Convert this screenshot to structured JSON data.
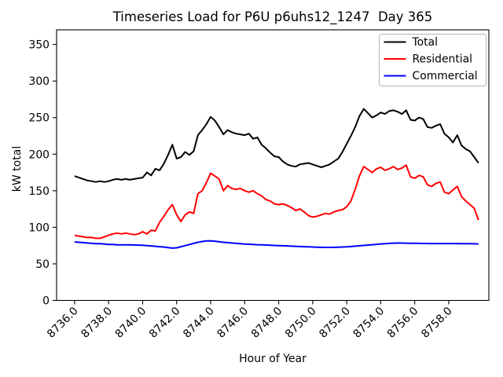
{
  "figure": {
    "title": "Timeseries Load for P6U p6uhs12_1247  Day 365",
    "xlabel": "Hour of Year",
    "ylabel": "kW total",
    "background_color": "#ffffff"
  },
  "legend": {
    "position": "upper right",
    "entries": [
      {
        "label": "Total",
        "color": "#000000"
      },
      {
        "label": "Residential",
        "color": "#ff0000"
      },
      {
        "label": "Commercial",
        "color": "#0000ff"
      }
    ]
  },
  "chart_data": {
    "type": "line",
    "title": "Timeseries Load for P6U p6uhs12_1247  Day 365",
    "xlabel": "Hour of Year",
    "ylabel": "kW total",
    "xlim": [
      8734.94,
      8760.36
    ],
    "ylim": [
      0,
      370
    ],
    "xticks": [
      8736.0,
      8738.0,
      8740.0,
      8742.0,
      8744.0,
      8746.0,
      8748.0,
      8750.0,
      8752.0,
      8754.0,
      8756.0,
      8758.0
    ],
    "yticks": [
      0,
      50,
      100,
      150,
      200,
      250,
      300,
      350
    ],
    "xtick_decimals": 1,
    "grid": false,
    "legend_position": "upper right",
    "x": [
      8736.0,
      8736.25,
      8736.5,
      8736.75,
      8737.0,
      8737.25,
      8737.5,
      8737.75,
      8738.0,
      8738.25,
      8738.5,
      8738.75,
      8739.0,
      8739.25,
      8739.5,
      8739.75,
      8740.0,
      8740.25,
      8740.5,
      8740.75,
      8741.0,
      8741.25,
      8741.5,
      8741.75,
      8742.0,
      8742.25,
      8742.5,
      8742.75,
      8743.0,
      8743.25,
      8743.5,
      8743.75,
      8744.0,
      8744.25,
      8744.5,
      8744.75,
      8745.0,
      8745.25,
      8745.5,
      8745.75,
      8746.0,
      8746.25,
      8746.5,
      8746.75,
      8747.0,
      8747.25,
      8747.5,
      8747.75,
      8748.0,
      8748.25,
      8748.5,
      8748.75,
      8749.0,
      8749.25,
      8749.5,
      8749.75,
      8750.0,
      8750.25,
      8750.5,
      8750.75,
      8751.0,
      8751.25,
      8751.5,
      8751.75,
      8752.0,
      8752.25,
      8752.5,
      8752.75,
      8753.0,
      8753.25,
      8753.5,
      8753.75,
      8754.0,
      8754.25,
      8754.5,
      8754.75,
      8755.0,
      8755.25,
      8755.5,
      8755.75,
      8756.0,
      8756.25,
      8756.5,
      8756.75,
      8757.0,
      8757.25,
      8757.5,
      8757.75,
      8758.0,
      8758.25,
      8758.5,
      8758.75,
      8759.0,
      8759.25,
      8759.5,
      8759.75
    ],
    "series": [
      {
        "name": "Total",
        "color": "#000000",
        "values": [
          170,
          168,
          166,
          164,
          163,
          162,
          163,
          162,
          163,
          165,
          166,
          165,
          166,
          165,
          166,
          167,
          168,
          175,
          171,
          180,
          178,
          187,
          199,
          213,
          194,
          196,
          203,
          199,
          204,
          226,
          233,
          241,
          251,
          246,
          237,
          227,
          233,
          230,
          228,
          227,
          226,
          228,
          221,
          223,
          213,
          208,
          202,
          197,
          196,
          190,
          186,
          184,
          183,
          186,
          187,
          188,
          186,
          184,
          182,
          184,
          186,
          190,
          194,
          203,
          214,
          225,
          237,
          252,
          262,
          256,
          250,
          253,
          257,
          255,
          259,
          260,
          258,
          255,
          260,
          247,
          246,
          250,
          248,
          237,
          236,
          239,
          241,
          228,
          223,
          216,
          226,
          212,
          207,
          204,
          196,
          188
        ]
      },
      {
        "name": "Residential",
        "color": "#ff0000",
        "values": [
          89,
          88,
          87,
          86,
          86,
          85,
          85,
          87,
          89,
          91,
          92,
          91,
          92,
          91,
          90,
          91,
          94,
          91,
          96,
          95,
          107,
          115,
          124,
          131,
          117,
          108,
          117,
          121,
          119,
          146,
          150,
          161,
          174,
          170,
          166,
          150,
          157,
          153,
          152,
          153,
          150,
          148,
          150,
          146,
          143,
          138,
          136,
          132,
          131,
          132,
          130,
          127,
          123,
          125,
          121,
          116,
          114,
          115,
          117,
          119,
          118,
          121,
          123,
          124,
          128,
          136,
          152,
          170,
          183,
          179,
          175,
          180,
          182,
          178,
          180,
          183,
          179,
          181,
          185,
          169,
          167,
          171,
          169,
          158,
          156,
          160,
          162,
          148,
          146,
          151,
          156,
          142,
          136,
          131,
          126,
          110
        ]
      },
      {
        "name": "Commercial",
        "color": "#0000ff",
        "values": [
          80,
          79.5,
          79,
          78.5,
          78,
          77.5,
          77.5,
          77,
          76.5,
          76.5,
          76,
          76,
          76,
          76,
          75.8,
          75.6,
          75.5,
          75,
          74.5,
          74,
          73.5,
          73,
          72.2,
          71.5,
          72,
          73.5,
          75,
          76.5,
          78,
          79.5,
          80.5,
          81.3,
          81.5,
          81,
          80.3,
          79.5,
          79,
          78.5,
          78,
          77.5,
          77,
          76.8,
          76.5,
          76.2,
          76,
          75.8,
          75.5,
          75.2,
          75,
          74.7,
          74.5,
          74.2,
          74,
          73.7,
          73.5,
          73.2,
          73,
          72.8,
          72.6,
          72.5,
          72.5,
          72.6,
          72.8,
          73,
          73.3,
          73.7,
          74.2,
          74.7,
          75.2,
          75.7,
          76.2,
          76.7,
          77.2,
          77.6,
          78,
          78.3,
          78.5,
          78.4,
          78.3,
          78.2,
          78.1,
          78,
          77.9,
          77.9,
          77.8,
          77.8,
          77.8,
          77.8,
          77.8,
          77.8,
          77.8,
          77.7,
          77.6,
          77.5,
          77.4,
          77.2
        ]
      }
    ]
  }
}
